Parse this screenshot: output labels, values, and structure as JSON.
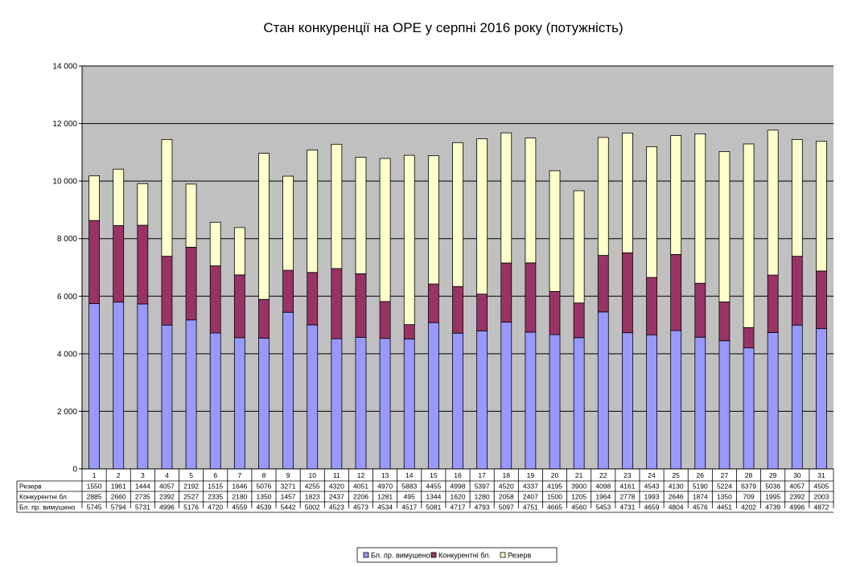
{
  "chart_data": {
    "type": "bar",
    "stacked": true,
    "title": "Стан конкуренції на ОРЕ  у серпні 2016 року (потужність)",
    "categories": [
      "1",
      "2",
      "3",
      "4",
      "5",
      "6",
      "7",
      "8",
      "9",
      "10",
      "11",
      "12",
      "13",
      "14",
      "15",
      "16",
      "17",
      "18",
      "19",
      "20",
      "21",
      "22",
      "23",
      "24",
      "25",
      "26",
      "27",
      "28",
      "29",
      "30",
      "31"
    ],
    "ylim": [
      0,
      14000
    ],
    "yticks": [
      0,
      2000,
      4000,
      6000,
      8000,
      10000,
      12000,
      14000
    ],
    "ytick_labels": [
      "0",
      "2 000",
      "4 000",
      "6 000",
      "8 000",
      "10 000",
      "12 000",
      "14 000"
    ],
    "grid": true,
    "legend_position": "bottom",
    "series": [
      {
        "name": "Бл. пр. вимушено",
        "color": "#9999ff",
        "values": [
          5745,
          5794,
          5731,
          4996,
          5176,
          4720,
          4559,
          4539,
          5442,
          5002,
          4523,
          4573,
          4534,
          4517,
          5081,
          4717,
          4793,
          5097,
          4751,
          4665,
          4560,
          5453,
          4731,
          4659,
          4804,
          4576,
          4451,
          4202,
          4739,
          4996,
          4872
        ]
      },
      {
        "name": "Конкурентні бл.",
        "color": "#993366",
        "values": [
          2885,
          2660,
          2735,
          2392,
          2527,
          2335,
          2180,
          1350,
          1457,
          1823,
          2437,
          2206,
          1281,
          495,
          1344,
          1620,
          1280,
          2058,
          2407,
          1500,
          1205,
          1964,
          2778,
          1993,
          2646,
          1874,
          1350,
          709,
          1995,
          2392,
          2003
        ]
      },
      {
        "name": "Резерв",
        "color": "#ffffcc",
        "values": [
          1550,
          1961,
          1444,
          4057,
          2192,
          1515,
          1646,
          5076,
          3271,
          4255,
          4320,
          4051,
          4970,
          5883,
          4455,
          4998,
          5397,
          4520,
          4337,
          4195,
          3900,
          4098,
          4161,
          4543,
          4130,
          5190,
          5224,
          6379,
          5036,
          4057,
          4505
        ]
      }
    ],
    "table_rows_order": [
      2,
      1,
      0
    ],
    "legend_order": [
      0,
      1,
      2
    ]
  }
}
